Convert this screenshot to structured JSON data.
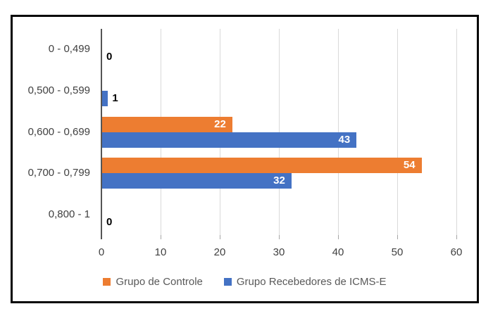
{
  "chart_data": {
    "type": "bar",
    "orientation": "horizontal",
    "title": "",
    "xlabel": "",
    "ylabel": "",
    "categories": [
      "0 - 0,499",
      "0,500 - 0,599",
      "0,600 - 0,699",
      "0,700 - 0,799",
      "0,800 - 1"
    ],
    "series": [
      {
        "name": "Grupo de Controle",
        "color": "#ED7D31",
        "values": [
          null,
          null,
          22,
          54,
          null
        ]
      },
      {
        "name": "Grupo Recebedores de ICMS-E",
        "color": "#4472C4",
        "values": [
          0,
          1,
          43,
          32,
          0
        ]
      }
    ],
    "xlim": [
      0,
      60
    ],
    "xticks": [
      0,
      10,
      20,
      30,
      40,
      50,
      60
    ],
    "grid": true,
    "legend_position": "bottom",
    "colors": {
      "background": "#ffffff",
      "frame_border": "#050505",
      "axis_line": "#555555",
      "gridline": "#d9d9d9",
      "tick_mark": "#a6a6a6",
      "tick_label": "#404040",
      "category_label": "#404040",
      "legend_text": "#595959",
      "data_label_inside": "#ffffff",
      "data_label_outside": "#000000"
    }
  }
}
